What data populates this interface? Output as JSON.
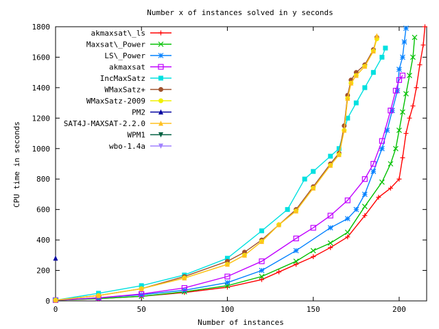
{
  "chart_data": {
    "type": "line",
    "title": "Number x of instances solved in y seconds",
    "xlabel": "Number of instances",
    "ylabel": "CPU time in seconds",
    "xlim": [
      0,
      216
    ],
    "ylim": [
      0,
      1800
    ],
    "xticks": [
      0,
      50,
      100,
      150,
      200
    ],
    "yticks": [
      0,
      200,
      400,
      600,
      800,
      1000,
      1200,
      1400,
      1600,
      1800
    ],
    "grid": false,
    "legend_position": "top-left",
    "series": [
      {
        "name": "akmaxsat\\_ls",
        "color": "#ff0000",
        "marker": "plus",
        "points": [
          [
            0,
            5
          ],
          [
            25,
            15
          ],
          [
            50,
            30
          ],
          [
            75,
            55
          ],
          [
            100,
            90
          ],
          [
            120,
            140
          ],
          [
            130,
            190
          ],
          [
            140,
            240
          ],
          [
            150,
            290
          ],
          [
            160,
            350
          ],
          [
            170,
            420
          ],
          [
            180,
            560
          ],
          [
            188,
            680
          ],
          [
            195,
            740
          ],
          [
            200,
            800
          ],
          [
            202,
            940
          ],
          [
            204,
            1100
          ],
          [
            206,
            1200
          ],
          [
            208,
            1280
          ],
          [
            210,
            1400
          ],
          [
            212,
            1550
          ],
          [
            214,
            1680
          ],
          [
            215,
            1800
          ]
        ]
      },
      {
        "name": "Maxsat\\_Power",
        "color": "#00c000",
        "marker": "x",
        "points": [
          [
            0,
            5
          ],
          [
            25,
            15
          ],
          [
            50,
            30
          ],
          [
            75,
            60
          ],
          [
            100,
            100
          ],
          [
            120,
            160
          ],
          [
            140,
            260
          ],
          [
            150,
            330
          ],
          [
            160,
            380
          ],
          [
            170,
            450
          ],
          [
            180,
            620
          ],
          [
            190,
            780
          ],
          [
            195,
            900
          ],
          [
            198,
            1000
          ],
          [
            200,
            1120
          ],
          [
            202,
            1240
          ],
          [
            204,
            1360
          ],
          [
            206,
            1480
          ],
          [
            208,
            1600
          ],
          [
            209,
            1730
          ]
        ]
      },
      {
        "name": "LS\\_Power",
        "color": "#0080ff",
        "marker": "star",
        "points": [
          [
            0,
            5
          ],
          [
            25,
            20
          ],
          [
            50,
            40
          ],
          [
            75,
            70
          ],
          [
            100,
            120
          ],
          [
            120,
            200
          ],
          [
            140,
            330
          ],
          [
            160,
            480
          ],
          [
            170,
            540
          ],
          [
            175,
            600
          ],
          [
            180,
            700
          ],
          [
            185,
            850
          ],
          [
            190,
            1000
          ],
          [
            193,
            1120
          ],
          [
            196,
            1250
          ],
          [
            199,
            1380
          ],
          [
            200,
            1520
          ],
          [
            202,
            1600
          ],
          [
            203,
            1700
          ],
          [
            204,
            1790
          ]
        ]
      },
      {
        "name": "akmaxsat",
        "color": "#c000ff",
        "marker": "square",
        "points": [
          [
            0,
            5
          ],
          [
            25,
            20
          ],
          [
            50,
            45
          ],
          [
            75,
            85
          ],
          [
            100,
            160
          ],
          [
            120,
            260
          ],
          [
            140,
            410
          ],
          [
            150,
            480
          ],
          [
            160,
            560
          ],
          [
            170,
            660
          ],
          [
            180,
            800
          ],
          [
            185,
            900
          ],
          [
            190,
            1050
          ],
          [
            195,
            1250
          ],
          [
            198,
            1380
          ],
          [
            200,
            1450
          ],
          [
            202,
            1480
          ]
        ]
      },
      {
        "name": "IncMaxSatz",
        "color": "#00e0e0",
        "marker": "filledsquare",
        "points": [
          [
            0,
            5
          ],
          [
            25,
            50
          ],
          [
            50,
            100
          ],
          [
            75,
            170
          ],
          [
            100,
            280
          ],
          [
            120,
            460
          ],
          [
            135,
            600
          ],
          [
            145,
            800
          ],
          [
            150,
            850
          ],
          [
            160,
            950
          ],
          [
            165,
            1000
          ],
          [
            170,
            1200
          ],
          [
            175,
            1300
          ],
          [
            180,
            1400
          ],
          [
            185,
            1500
          ],
          [
            190,
            1600
          ],
          [
            192,
            1660
          ]
        ]
      },
      {
        "name": "WMaxSatz+",
        "color": "#a0522d",
        "marker": "filledcircle",
        "points": [
          [
            0,
            5
          ],
          [
            25,
            35
          ],
          [
            50,
            80
          ],
          [
            75,
            160
          ],
          [
            100,
            260
          ],
          [
            110,
            320
          ],
          [
            120,
            400
          ],
          [
            130,
            500
          ],
          [
            140,
            600
          ],
          [
            150,
            750
          ],
          [
            160,
            900
          ],
          [
            165,
            970
          ],
          [
            168,
            1150
          ],
          [
            170,
            1350
          ],
          [
            172,
            1450
          ],
          [
            175,
            1500
          ],
          [
            180,
            1550
          ],
          [
            185,
            1650
          ],
          [
            187,
            1730
          ]
        ]
      },
      {
        "name": "WMaxSatz-2009",
        "color": "#f0f000",
        "marker": "filledcircle",
        "points": [
          [
            0,
            5
          ],
          [
            25,
            35
          ],
          [
            50,
            80
          ],
          [
            75,
            150
          ],
          [
            100,
            240
          ],
          [
            110,
            300
          ],
          [
            120,
            390
          ],
          [
            130,
            500
          ],
          [
            140,
            590
          ],
          [
            150,
            740
          ],
          [
            160,
            890
          ],
          [
            165,
            960
          ],
          [
            168,
            1120
          ],
          [
            170,
            1330
          ],
          [
            172,
            1430
          ],
          [
            175,
            1480
          ],
          [
            180,
            1540
          ],
          [
            185,
            1640
          ],
          [
            187,
            1720
          ]
        ]
      },
      {
        "name": "PM2",
        "color": "#0000a0",
        "marker": "triangle",
        "points": [
          [
            0,
            280
          ]
        ]
      },
      {
        "name": "SAT4J-MAXSAT-2.2.0",
        "color": "#ffc020",
        "marker": "triangle",
        "points": [
          [
            0,
            5
          ],
          [
            25,
            35
          ],
          [
            50,
            80
          ],
          [
            75,
            150
          ],
          [
            100,
            240
          ],
          [
            110,
            300
          ],
          [
            120,
            390
          ],
          [
            130,
            500
          ],
          [
            140,
            590
          ],
          [
            150,
            740
          ],
          [
            160,
            890
          ],
          [
            165,
            960
          ],
          [
            168,
            1120
          ],
          [
            170,
            1330
          ],
          [
            172,
            1430
          ],
          [
            175,
            1480
          ],
          [
            180,
            1540
          ],
          [
            185,
            1640
          ],
          [
            187,
            1740
          ]
        ]
      },
      {
        "name": "WPM1",
        "color": "#006040",
        "marker": "invtriangle",
        "points": []
      },
      {
        "name": "wbo-1.4a",
        "color": "#a080ff",
        "marker": "invtriangle",
        "points": []
      }
    ]
  }
}
